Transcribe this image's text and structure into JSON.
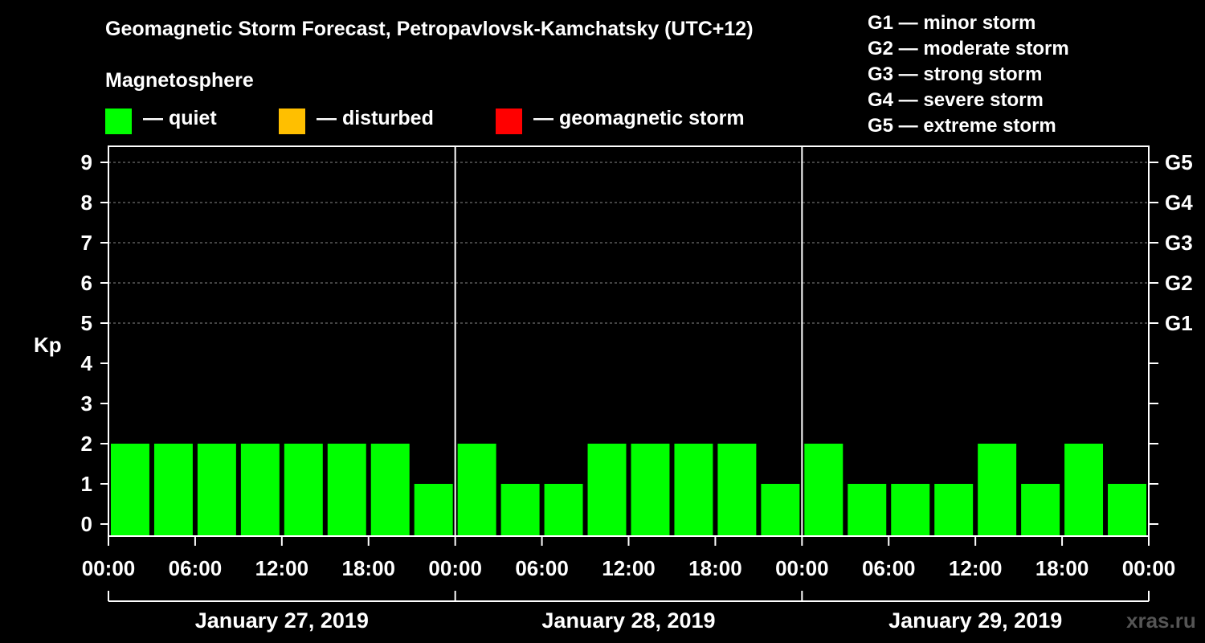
{
  "title": "Geomagnetic Storm Forecast, Petropavlovsk-Kamchatsky (UTC+12)",
  "magnetosphere_label": "Magnetosphere",
  "legend": [
    {
      "label": "— quiet",
      "color": "#00ff00"
    },
    {
      "label": "— disturbed",
      "color": "#ffbf00"
    },
    {
      "label": "— geomagnetic storm",
      "color": "#ff0000"
    }
  ],
  "storm_scale": [
    "G1 — minor storm",
    "G2 — moderate storm",
    "G3 — strong storm",
    "G4 — severe storm",
    "G5 — extreme storm"
  ],
  "watermark": "xras.ru",
  "colors": {
    "background": "#000000",
    "grid": "#888888",
    "axis": "#ffffff"
  },
  "chart_data": {
    "type": "bar",
    "title": "Geomagnetic Storm Forecast, Petropavlovsk-Kamchatsky (UTC+12)",
    "ylabel": "Kp",
    "ylim": [
      0,
      9
    ],
    "yticks": [
      "0",
      "1",
      "2",
      "3",
      "4",
      "5",
      "6",
      "7",
      "8",
      "9"
    ],
    "right_ticks": [
      {
        "value": 5,
        "label": "G1"
      },
      {
        "value": 6,
        "label": "G2"
      },
      {
        "value": 7,
        "label": "G3"
      },
      {
        "value": 8,
        "label": "G4"
      },
      {
        "value": 9,
        "label": "G5"
      }
    ],
    "xtick_labels": [
      "00:00",
      "06:00",
      "12:00",
      "18:00",
      "00:00",
      "06:00",
      "12:00",
      "18:00",
      "00:00",
      "06:00",
      "12:00",
      "18:00",
      "00:00"
    ],
    "days": [
      "January 27, 2019",
      "January 28, 2019",
      "January 29, 2019"
    ],
    "interval_hours": 3,
    "values": [
      2,
      2,
      2,
      2,
      2,
      2,
      2,
      1,
      2,
      1,
      1,
      2,
      2,
      2,
      2,
      1,
      2,
      1,
      1,
      1,
      2,
      1,
      2,
      1
    ],
    "bar_color": "#00ff00",
    "grid_lines_at": [
      5,
      6,
      7,
      8,
      9
    ]
  }
}
